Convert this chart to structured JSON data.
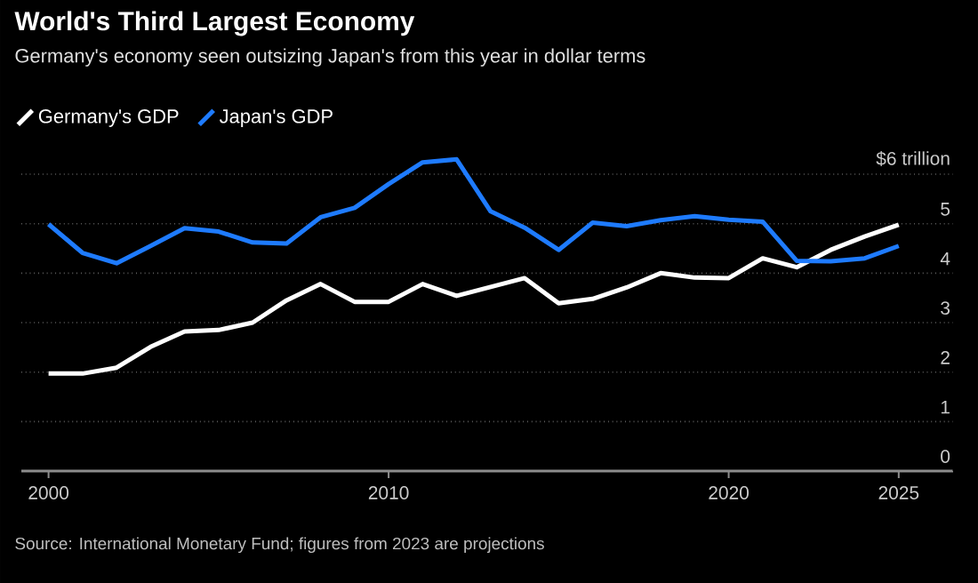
{
  "chart_data": {
    "type": "line",
    "title": "World's Third Largest Economy",
    "subtitle": "Germany's economy seen outsizing Japan's from this year in dollar terms",
    "annotations": [
      "Source: International Monetary Fund; figures from 2023 are projections"
    ],
    "x": [
      2000,
      2001,
      2002,
      2003,
      2004,
      2005,
      2006,
      2007,
      2008,
      2009,
      2010,
      2011,
      2012,
      2013,
      2014,
      2015,
      2016,
      2017,
      2018,
      2019,
      2020,
      2021,
      2022,
      2023,
      2024,
      2025
    ],
    "series": [
      {
        "name": "Germany's GDP",
        "color": "#ffffff",
        "values": [
          1.97,
          1.97,
          2.09,
          2.51,
          2.82,
          2.85,
          3.0,
          3.45,
          3.78,
          3.42,
          3.42,
          3.78,
          3.54,
          3.72,
          3.9,
          3.39,
          3.48,
          3.71,
          4.0,
          3.91,
          3.9,
          4.3,
          4.12,
          4.47,
          4.74,
          4.98
        ]
      },
      {
        "name": "Japan's GDP",
        "color": "#1e7bff",
        "values": [
          4.99,
          4.41,
          4.2,
          4.55,
          4.91,
          4.84,
          4.62,
          4.6,
          5.13,
          5.32,
          5.8,
          6.24,
          6.3,
          5.25,
          4.92,
          4.47,
          5.02,
          4.95,
          5.07,
          5.15,
          5.08,
          5.04,
          4.25,
          4.24,
          4.3,
          4.55
        ]
      }
    ],
    "xlim": [
      1999.2,
      2026.6
    ],
    "ylim": [
      0,
      6.4
    ],
    "xticks": [
      2000,
      2010,
      2020,
      2025
    ],
    "yticks": [
      0,
      1,
      2,
      3,
      4,
      5,
      {
        "value": 6,
        "label": "$6 trillion"
      }
    ],
    "grid": "y",
    "legend": "top left"
  }
}
